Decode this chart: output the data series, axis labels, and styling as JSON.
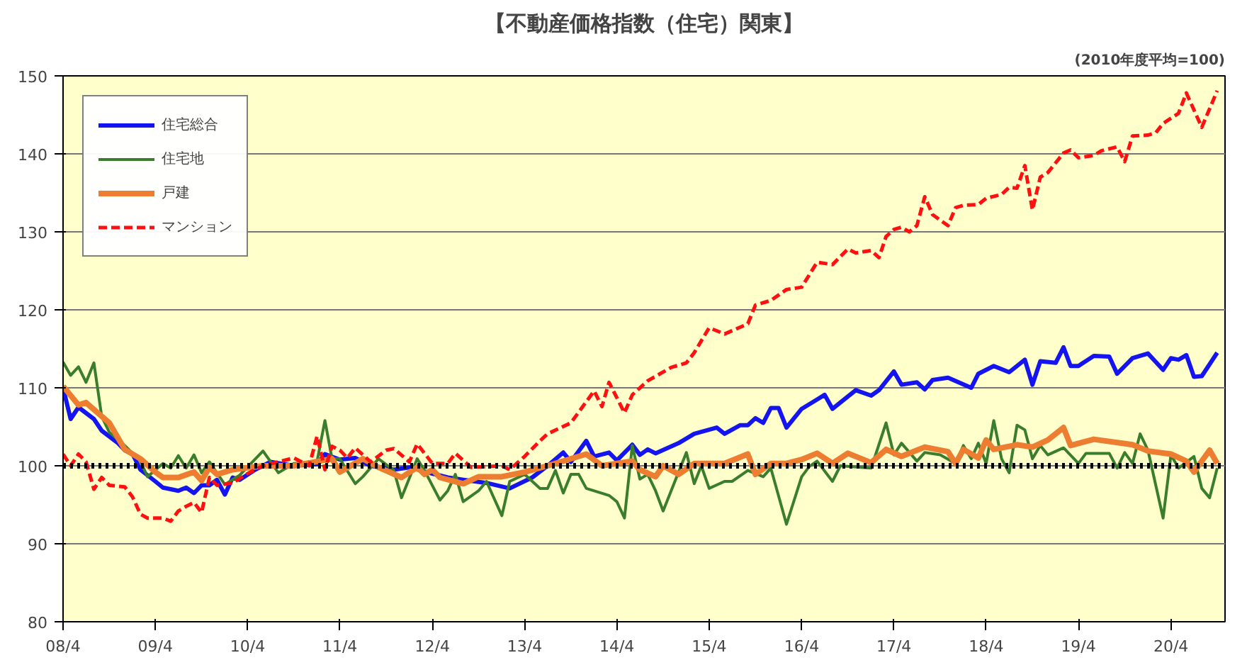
{
  "chart_data": {
    "type": "line",
    "title": "【不動産価格指数（住宅）関東】",
    "annotations": [
      "(2010年度平均=100)"
    ],
    "xlim": [
      "2008-04",
      "2020-11"
    ],
    "xticks": [
      {
        "value": "2008-04",
        "label": "08/4"
      },
      {
        "value": "2009-04",
        "label": "09/4"
      },
      {
        "value": "2010-04",
        "label": "10/4"
      },
      {
        "value": "2011-04",
        "label": "11/4"
      },
      {
        "value": "2012-04",
        "label": "12/4"
      },
      {
        "value": "2013-04",
        "label": "13/4"
      },
      {
        "value": "2014-04",
        "label": "14/4"
      },
      {
        "value": "2015-04",
        "label": "15/4"
      },
      {
        "value": "2016-04",
        "label": "16/4"
      },
      {
        "value": "2017-04",
        "label": "17/4"
      },
      {
        "value": "2018-04",
        "label": "18/4"
      },
      {
        "value": "2019-04",
        "label": "19/4"
      },
      {
        "value": "2020-04",
        "label": "20/4"
      }
    ],
    "ylim": [
      80,
      150
    ],
    "yticks": [
      80,
      90,
      100,
      110,
      120,
      130,
      140,
      150
    ],
    "grid": "y",
    "legend": "top left",
    "marker": "none",
    "ref_lines": [
      {
        "axis": "y",
        "value": 100,
        "color": "#000000",
        "line_style": "dotted"
      }
    ],
    "series": [
      {
        "name": "住宅総合",
        "color": "#1414f0",
        "line_style": "solid",
        "x": [
          "2008-04",
          "2008-05",
          "2008-06",
          "2008-08",
          "2008-09",
          "2008-11",
          "2008-12",
          "2009-01",
          "2009-02",
          "2009-04",
          "2009-05",
          "2009-07",
          "2009-08",
          "2009-09",
          "2009-10",
          "2009-11",
          "2009-12",
          "2010-01",
          "2010-02",
          "2010-03",
          "2010-05",
          "2010-07",
          "2010-10",
          "2011-01",
          "2011-02",
          "2011-04",
          "2011-06",
          "2011-08",
          "2011-11",
          "2012-01",
          "2012-04",
          "2012-06",
          "2012-08",
          "2012-11",
          "2013-02",
          "2013-05",
          "2013-07",
          "2013-09",
          "2013-10",
          "2013-12",
          "2014-01",
          "2014-03",
          "2014-04",
          "2014-06",
          "2014-07",
          "2014-08",
          "2014-09",
          "2014-12",
          "2015-02",
          "2015-05",
          "2015-06",
          "2015-08",
          "2015-09",
          "2015-10",
          "2015-11",
          "2015-12",
          "2016-01",
          "2016-02",
          "2016-04",
          "2016-06",
          "2016-07",
          "2016-08",
          "2016-11",
          "2017-01",
          "2017-02",
          "2017-04",
          "2017-05",
          "2017-07",
          "2017-08",
          "2017-09",
          "2017-11",
          "2018-02",
          "2018-03",
          "2018-05",
          "2018-07",
          "2018-09",
          "2018-10",
          "2018-11",
          "2019-01",
          "2019-02",
          "2019-03",
          "2019-04",
          "2019-06",
          "2019-08",
          "2019-09",
          "2019-11",
          "2020-01",
          "2020-03",
          "2020-04",
          "2020-05",
          "2020-06",
          "2020-07",
          "2020-08",
          "2020-10"
        ],
        "values": [
          110,
          106,
          107.5,
          106,
          104.5,
          103,
          102,
          101.5,
          99.5,
          98,
          97.2,
          96.8,
          97.2,
          96.5,
          97.5,
          97.5,
          98.2,
          96.3,
          98.5,
          98.2,
          99.5,
          100.5,
          100,
          100.2,
          101.5,
          100.8,
          101,
          100,
          99.5,
          99.8,
          99,
          98.5,
          98.2,
          97.8,
          97.1,
          98.5,
          100,
          101.7,
          100.5,
          103.2,
          101.2,
          101.7,
          100.7,
          102.7,
          101.4,
          102.1,
          101.6,
          102.9,
          104.1,
          104.9,
          104.1,
          105.2,
          105.2,
          106.1,
          105.5,
          107.4,
          107.4,
          104.9,
          107.3,
          108.5,
          109.1,
          107.3,
          109.7,
          109,
          109.7,
          112.1,
          110.4,
          110.7,
          109.8,
          111,
          111.3,
          110,
          111.8,
          112.8,
          112,
          113.6,
          110.4,
          113.4,
          113.2,
          115.2,
          112.8,
          112.8,
          114.1,
          114,
          111.8,
          113.8,
          114.4,
          112.3,
          113.8,
          113.6,
          114.2,
          111.4,
          111.5,
          114.5
        ]
      },
      {
        "name": "住宅地",
        "color": "#3a7d2c",
        "line_style": "solid",
        "x": [
          "2008-04",
          "2008-05",
          "2008-06",
          "2008-07",
          "2008-08",
          "2008-09",
          "2008-10",
          "2008-12",
          "2009-02",
          "2009-03",
          "2009-05",
          "2009-06",
          "2009-07",
          "2009-08",
          "2009-09",
          "2009-10",
          "2009-11",
          "2010-01",
          "2010-03",
          "2010-06",
          "2010-08",
          "2010-10",
          "2011-01",
          "2011-02",
          "2011-03",
          "2011-04",
          "2011-06",
          "2011-07",
          "2011-09",
          "2011-11",
          "2011-12",
          "2012-02",
          "2012-03",
          "2012-05",
          "2012-06",
          "2012-07",
          "2012-08",
          "2012-10",
          "2012-11",
          "2013-01",
          "2013-02",
          "2013-04",
          "2013-06",
          "2013-07",
          "2013-08",
          "2013-09",
          "2013-10",
          "2013-11",
          "2013-12",
          "2014-03",
          "2014-04",
          "2014-05",
          "2014-06",
          "2014-07",
          "2014-08",
          "2014-09",
          "2014-10",
          "2015-01",
          "2015-02",
          "2015-03",
          "2015-04",
          "2015-06",
          "2015-07",
          "2015-09",
          "2015-11",
          "2015-12",
          "2016-02",
          "2016-04",
          "2016-05",
          "2016-06",
          "2016-08",
          "2016-09",
          "2017-01",
          "2017-03",
          "2017-04",
          "2017-05",
          "2017-07",
          "2017-08",
          "2017-10",
          "2017-12",
          "2018-01",
          "2018-02",
          "2018-03",
          "2018-04",
          "2018-05",
          "2018-06",
          "2018-07",
          "2018-08",
          "2018-09",
          "2018-10",
          "2018-11",
          "2018-12",
          "2019-02",
          "2019-04",
          "2019-05",
          "2019-08",
          "2019-09",
          "2019-10",
          "2019-11",
          "2019-12",
          "2020-01",
          "2020-03",
          "2020-04",
          "2020-05",
          "2020-07",
          "2020-08",
          "2020-09",
          "2020-10"
        ],
        "values": [
          113.3,
          111.6,
          112.7,
          110.7,
          113.2,
          106.3,
          104.3,
          102.6,
          100.6,
          98.6,
          100.3,
          99.7,
          101.3,
          99.7,
          101.4,
          99.1,
          100.5,
          97.6,
          98.8,
          101.9,
          99.1,
          100.3,
          100.6,
          105.8,
          100.9,
          100.9,
          97.7,
          98.6,
          100.9,
          99.4,
          95.9,
          100.9,
          99.4,
          95.6,
          96.8,
          98.9,
          95.4,
          96.8,
          98,
          93.6,
          98,
          98.9,
          97.1,
          97.1,
          99.4,
          96.5,
          98.9,
          98.9,
          97.1,
          96.2,
          95.4,
          93.3,
          102.6,
          98.3,
          98.9,
          96.8,
          94.2,
          101.7,
          97.7,
          100,
          97.1,
          98,
          98,
          99.4,
          98.6,
          99.7,
          92.5,
          98.6,
          99.9,
          100.6,
          98,
          100,
          99.7,
          105.5,
          101.4,
          102.9,
          100.6,
          101.7,
          101.4,
          100.3,
          102.6,
          100.9,
          102.9,
          100.3,
          105.8,
          100.9,
          99.1,
          105.2,
          104.6,
          100.9,
          102.6,
          101.4,
          102.3,
          100.3,
          101.6,
          101.6,
          99.7,
          101.7,
          100.3,
          104.1,
          102,
          93.3,
          101.4,
          99.7,
          101.2,
          97.1,
          95.9,
          99.7
        ]
      },
      {
        "name": "戸建",
        "color": "#ed7d31",
        "line_style": "solid",
        "x": [
          "2008-04",
          "2008-06",
          "2008-07",
          "2008-10",
          "2008-12",
          "2009-02",
          "2009-04",
          "2009-05",
          "2009-07",
          "2009-09",
          "2009-10",
          "2009-11",
          "2009-12",
          "2010-02",
          "2010-06",
          "2010-10",
          "2011-03",
          "2011-04",
          "2011-07",
          "2011-09",
          "2011-12",
          "2012-02",
          "2012-03",
          "2012-04",
          "2012-05",
          "2012-08",
          "2012-10",
          "2013-01",
          "2013-04",
          "2013-07",
          "2013-12",
          "2014-02",
          "2014-06",
          "2014-07",
          "2014-09",
          "2014-10",
          "2014-12",
          "2015-02",
          "2015-06",
          "2015-09",
          "2015-10",
          "2015-12",
          "2016-02",
          "2016-04",
          "2016-06",
          "2016-08",
          "2016-10",
          "2017-01",
          "2017-03",
          "2017-05",
          "2017-08",
          "2017-11",
          "2017-12",
          "2018-01",
          "2018-03",
          "2018-04",
          "2018-05",
          "2018-08",
          "2018-10",
          "2018-12",
          "2019-02",
          "2019-03",
          "2019-06",
          "2019-11",
          "2020-01",
          "2020-04",
          "2020-06",
          "2020-07",
          "2020-09",
          "2020-10"
        ],
        "values": [
          110.2,
          107.8,
          108.1,
          105.5,
          102.1,
          100.9,
          99.2,
          98.5,
          98.5,
          99.2,
          98.1,
          99.8,
          98.9,
          99.5,
          100,
          100,
          100.9,
          99.2,
          100.9,
          99.8,
          98.5,
          99.8,
          98.9,
          99.5,
          98.5,
          97.7,
          98.6,
          98.6,
          99.2,
          100,
          101.5,
          100,
          100.6,
          99.5,
          98.6,
          100,
          98.9,
          100.3,
          100.3,
          101.5,
          98.9,
          100.3,
          100.3,
          100.8,
          101.6,
          100.3,
          101.6,
          100.4,
          102.1,
          101.2,
          102.4,
          101.8,
          100.3,
          102.1,
          101,
          103.3,
          102.1,
          102.7,
          102.4,
          103.3,
          104.9,
          102.6,
          103.4,
          102.7,
          101.9,
          101.5,
          100.6,
          99.2,
          102,
          100.3
        ]
      },
      {
        "name": "マンション",
        "color": "#ff1010",
        "line_style": "dashed",
        "x": [
          "2008-04",
          "2008-05",
          "2008-06",
          "2008-07",
          "2008-08",
          "2008-09",
          "2008-10",
          "2008-12",
          "2009-01",
          "2009-02",
          "2009-03",
          "2009-05",
          "2009-06",
          "2009-07",
          "2009-08",
          "2009-09",
          "2009-10",
          "2009-11",
          "2009-12",
          "2010-02",
          "2010-04",
          "2010-06",
          "2010-08",
          "2010-10",
          "2010-12",
          "2011-01",
          "2011-02",
          "2011-03",
          "2011-04",
          "2011-05",
          "2011-06",
          "2011-08",
          "2011-10",
          "2011-11",
          "2012-01",
          "2012-02",
          "2012-04",
          "2012-06",
          "2012-07",
          "2012-09",
          "2012-11",
          "2013-01",
          "2013-02",
          "2013-04",
          "2013-06",
          "2013-07",
          "2013-10",
          "2014-01",
          "2014-02",
          "2014-03",
          "2014-05",
          "2014-06",
          "2014-08",
          "2014-11",
          "2015-01",
          "2015-02",
          "2015-04",
          "2015-06",
          "2015-09",
          "2015-10",
          "2015-12",
          "2016-02",
          "2016-04",
          "2016-06",
          "2016-08",
          "2016-10",
          "2016-11",
          "2017-01",
          "2017-02",
          "2017-03",
          "2017-04",
          "2017-05",
          "2017-06",
          "2017-07",
          "2017-08",
          "2017-09",
          "2017-11",
          "2017-12",
          "2018-01",
          "2018-03",
          "2018-04",
          "2018-06",
          "2018-07",
          "2018-08",
          "2018-09",
          "2018-10",
          "2018-11",
          "2018-12",
          "2019-02",
          "2019-03",
          "2019-04",
          "2019-06",
          "2019-07",
          "2019-09",
          "2019-10",
          "2019-11",
          "2020-01",
          "2020-02",
          "2020-03",
          "2020-05",
          "2020-06",
          "2020-08",
          "2020-10"
        ],
        "values": [
          101.5,
          100,
          101.5,
          100.5,
          97,
          98.5,
          97.5,
          97.3,
          96,
          93.8,
          93.3,
          93.3,
          92.9,
          94.2,
          94.8,
          95.3,
          94,
          98.5,
          97.5,
          97.8,
          99,
          100,
          100.5,
          101,
          100,
          103.8,
          99.5,
          102.5,
          102,
          101,
          102.3,
          100.5,
          102,
          102.2,
          100.5,
          102.8,
          100.3,
          100.3,
          101.6,
          99.8,
          99.9,
          100,
          99.5,
          101.2,
          103.2,
          104.1,
          105.5,
          109.6,
          107.6,
          110.7,
          106.8,
          109.1,
          110.9,
          112.6,
          113.2,
          114.5,
          117.7,
          116.9,
          118.2,
          120.6,
          121.2,
          122.6,
          122.9,
          126.1,
          125.8,
          127.8,
          127.3,
          127.6,
          126.7,
          129.4,
          130.3,
          130.6,
          130,
          130.8,
          134.5,
          132.2,
          130.8,
          133.1,
          133.4,
          133.5,
          134.3,
          134.8,
          135.7,
          135.6,
          138.5,
          132.8,
          137,
          137.6,
          140.1,
          140.5,
          139.5,
          139.8,
          140.4,
          140.9,
          139,
          142.3,
          142.4,
          142.7,
          143.9,
          145.2,
          147.8,
          143.4,
          148.1
        ]
      }
    ]
  }
}
